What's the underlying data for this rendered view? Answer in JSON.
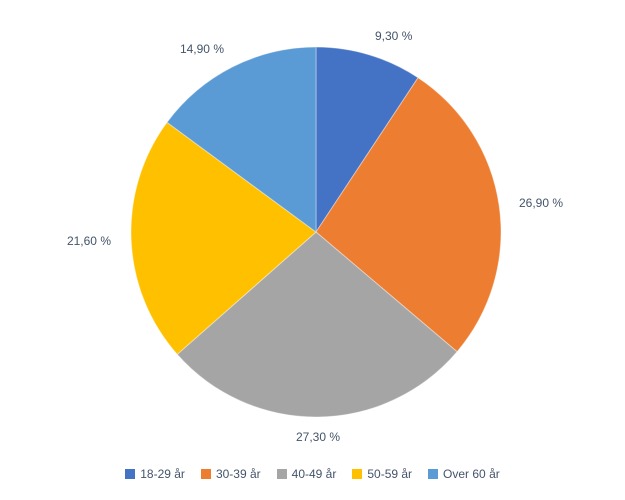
{
  "chart_data": {
    "type": "pie",
    "title": "",
    "start_angle_deg": 0,
    "direction": "clockwise",
    "label_position": "outside-end",
    "legend_position": "bottom",
    "label_color": "#44546A",
    "background": "#FFFFFF",
    "unit": "%",
    "categories": [
      "18-29 år",
      "30-39 år",
      "40-49 år",
      "50-59 år",
      "Over 60 år"
    ],
    "values": [
      9.3,
      26.9,
      27.3,
      21.6,
      14.9
    ],
    "segments": [
      {
        "label": "18-29 år",
        "value": 9.3,
        "display": "9,30 %",
        "color": "#4472C4"
      },
      {
        "label": "30-39 år",
        "value": 26.9,
        "display": "26,90 %",
        "color": "#ED7D31"
      },
      {
        "label": "40-49 år",
        "value": 27.3,
        "display": "27,30 %",
        "color": "#A5A5A5"
      },
      {
        "label": "50-59 år",
        "value": 21.6,
        "display": "21,60 %",
        "color": "#FFC000"
      },
      {
        "label": "Over 60 år",
        "value": 14.9,
        "display": "14,90 %",
        "color": "#5B9BD5"
      }
    ]
  }
}
